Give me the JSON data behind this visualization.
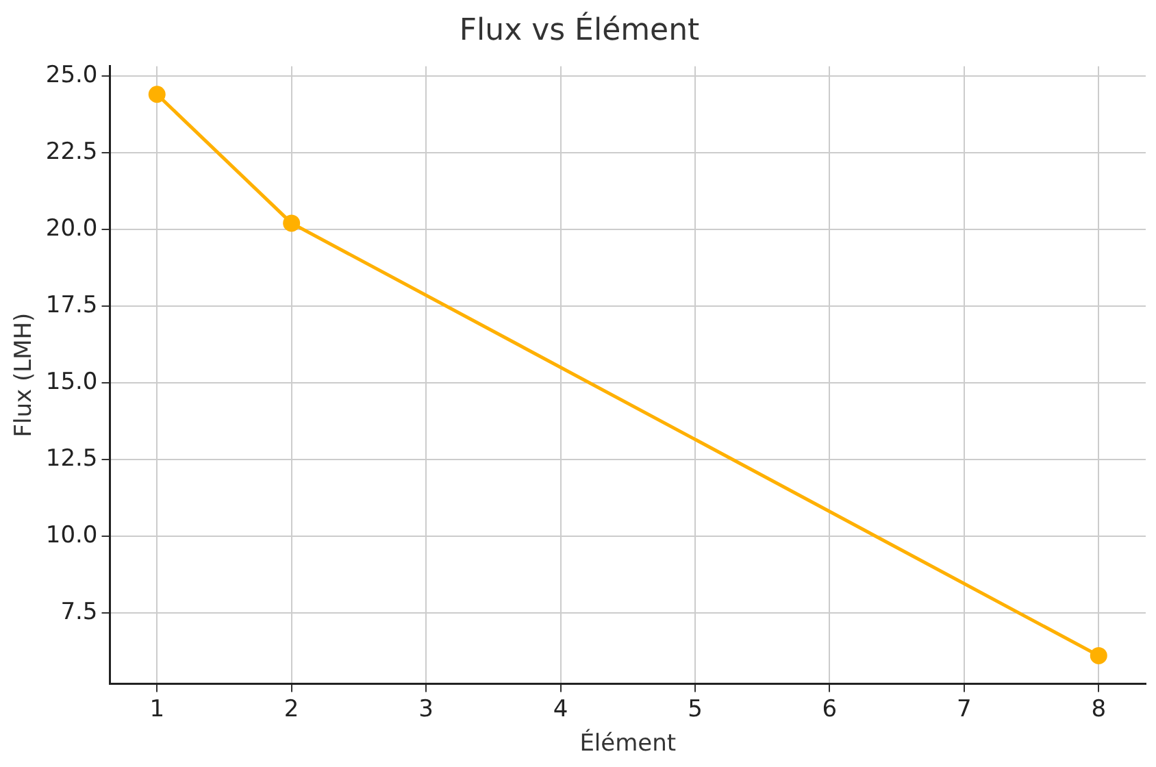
{
  "chart_data": {
    "type": "line",
    "title": "Flux vs Élément",
    "xlabel": "Élément",
    "ylabel": "Flux (LMH)",
    "x": [
      1,
      2,
      8
    ],
    "series": [
      {
        "color": "#ffb000",
        "values": [
          24.4,
          20.2,
          6.1
        ]
      }
    ],
    "xlim": [
      0.65,
      8.35
    ],
    "xticks": [
      1,
      2,
      3,
      4,
      5,
      6,
      7,
      8
    ],
    "ylim": [
      5.185,
      25.315
    ],
    "yticks": [
      {
        "value": 7.5,
        "label": "7.5"
      },
      {
        "value": 10,
        "label": "10.0"
      },
      {
        "value": 12.5,
        "label": "12.5"
      },
      {
        "value": 15,
        "label": "15.0"
      },
      {
        "value": 17.5,
        "label": "17.5"
      },
      {
        "value": 20,
        "label": "20.0"
      },
      {
        "value": 22.5,
        "label": "22.5"
      },
      {
        "value": 25,
        "label": "25.0"
      }
    ],
    "grid": true,
    "marker": "circle",
    "line_style": "solid",
    "legend": false
  }
}
